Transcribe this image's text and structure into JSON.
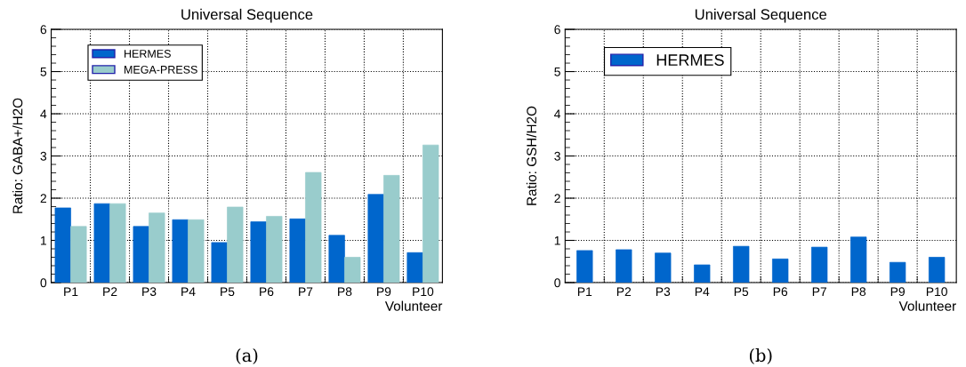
{
  "chart_data": [
    {
      "type": "bar",
      "title": "Universal Sequence",
      "xlabel": "Volunteer",
      "ylabel": "Ratio: GABA+/H2O",
      "categories": [
        "P1",
        "P2",
        "P3",
        "P4",
        "P5",
        "P6",
        "P7",
        "P8",
        "P9",
        "P10"
      ],
      "series": [
        {
          "name": "HERMES",
          "color": "#0066cc",
          "values": [
            1.77,
            1.87,
            1.33,
            1.49,
            0.95,
            1.44,
            1.51,
            1.12,
            2.09,
            0.71
          ]
        },
        {
          "name": "MEGA-PRESS",
          "color": "#99cccc",
          "values": [
            1.33,
            1.87,
            1.65,
            1.49,
            1.79,
            1.57,
            2.61,
            0.6,
            2.54,
            3.26
          ]
        }
      ],
      "ylim": [
        0,
        6
      ],
      "yticks": [
        0,
        1,
        2,
        3,
        4,
        5,
        6
      ],
      "grid": true,
      "legend": "top left",
      "annotations": [
        "(a)"
      ]
    },
    {
      "type": "bar",
      "title": "Universal Sequence",
      "xlabel": "Volunteer",
      "ylabel": "Ratio: GSH/H2O",
      "categories": [
        "P1",
        "P2",
        "P3",
        "P4",
        "P5",
        "P6",
        "P7",
        "P8",
        "P9",
        "P10"
      ],
      "series": [
        {
          "name": "HERMES",
          "color": "#0066cc",
          "values": [
            0.76,
            0.78,
            0.7,
            0.42,
            0.86,
            0.56,
            0.84,
            1.08,
            0.48,
            0.6
          ]
        }
      ],
      "ylim": [
        0,
        6
      ],
      "yticks": [
        0,
        1,
        2,
        3,
        4,
        5,
        6
      ],
      "grid": true,
      "legend": "top left",
      "annotations": [
        "(b)"
      ]
    }
  ]
}
